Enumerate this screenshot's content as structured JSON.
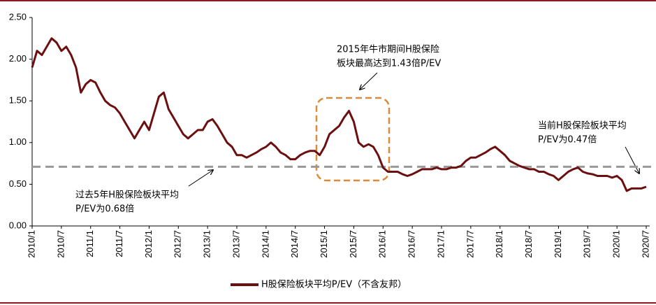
{
  "chart_data": {
    "type": "line",
    "x": [
      "2010/1",
      "2010/2",
      "2010/3",
      "2010/4",
      "2010/5",
      "2010/6",
      "2010/7",
      "2010/8",
      "2010/9",
      "2010/10",
      "2010/11",
      "2010/12",
      "2011/1",
      "2011/2",
      "2011/3",
      "2011/4",
      "2011/5",
      "2011/6",
      "2011/7",
      "2011/8",
      "2011/9",
      "2011/10",
      "2011/11",
      "2011/12",
      "2012/1",
      "2012/2",
      "2012/3",
      "2012/4",
      "2012/5",
      "2012/6",
      "2012/7",
      "2012/8",
      "2012/9",
      "2012/10",
      "2012/11",
      "2012/12",
      "2013/1",
      "2013/2",
      "2013/3",
      "2013/4",
      "2013/5",
      "2013/6",
      "2013/7",
      "2013/8",
      "2013/9",
      "2013/10",
      "2013/11",
      "2013/12",
      "2014/1",
      "2014/2",
      "2014/3",
      "2014/4",
      "2014/5",
      "2014/6",
      "2014/7",
      "2014/8",
      "2014/9",
      "2014/10",
      "2014/11",
      "2014/12",
      "2015/1",
      "2015/2",
      "2015/3",
      "2015/4",
      "2015/5",
      "2015/6",
      "2015/7",
      "2015/8",
      "2015/9",
      "2015/10",
      "2015/11",
      "2015/12",
      "2016/1",
      "2016/2",
      "2016/3",
      "2016/4",
      "2016/5",
      "2016/6",
      "2016/7",
      "2016/8",
      "2016/9",
      "2016/10",
      "2016/11",
      "2016/12",
      "2017/1",
      "2017/2",
      "2017/3",
      "2017/4",
      "2017/5",
      "2017/6",
      "2017/7",
      "2017/8",
      "2017/9",
      "2017/10",
      "2017/11",
      "2017/12",
      "2018/1",
      "2018/2",
      "2018/3",
      "2018/4",
      "2018/5",
      "2018/6",
      "2018/7",
      "2018/8",
      "2018/9",
      "2018/10",
      "2018/11",
      "2018/12",
      "2019/1",
      "2019/2",
      "2019/3",
      "2019/4",
      "2019/5",
      "2019/6",
      "2019/7",
      "2019/8",
      "2019/9",
      "2019/10",
      "2019/11",
      "2019/12",
      "2020/1",
      "2020/2",
      "2020/3",
      "2020/4",
      "2020/5",
      "2020/6",
      "2020/7"
    ],
    "series": [
      {
        "name": "H股保险板块平均P/EV（不含友邦）",
        "color": "#6b0f0f",
        "values": [
          1.9,
          2.1,
          2.05,
          2.15,
          2.25,
          2.2,
          2.1,
          2.15,
          2.05,
          1.9,
          1.6,
          1.7,
          1.75,
          1.72,
          1.6,
          1.5,
          1.45,
          1.42,
          1.35,
          1.25,
          1.15,
          1.05,
          1.15,
          1.25,
          1.15,
          1.35,
          1.55,
          1.6,
          1.4,
          1.3,
          1.2,
          1.1,
          1.05,
          1.1,
          1.15,
          1.15,
          1.25,
          1.28,
          1.2,
          1.1,
          1.0,
          0.95,
          0.85,
          0.85,
          0.82,
          0.85,
          0.88,
          0.92,
          0.95,
          1.0,
          0.95,
          0.88,
          0.85,
          0.8,
          0.8,
          0.85,
          0.88,
          0.9,
          0.9,
          0.85,
          0.95,
          1.1,
          1.15,
          1.2,
          1.3,
          1.38,
          1.25,
          1.0,
          0.95,
          0.98,
          0.95,
          0.85,
          0.7,
          0.65,
          0.65,
          0.65,
          0.62,
          0.6,
          0.62,
          0.65,
          0.68,
          0.68,
          0.68,
          0.7,
          0.68,
          0.68,
          0.7,
          0.7,
          0.72,
          0.78,
          0.82,
          0.82,
          0.85,
          0.88,
          0.92,
          0.95,
          0.9,
          0.85,
          0.78,
          0.75,
          0.72,
          0.7,
          0.68,
          0.68,
          0.65,
          0.65,
          0.62,
          0.6,
          0.55,
          0.6,
          0.65,
          0.68,
          0.7,
          0.65,
          0.63,
          0.62,
          0.6,
          0.6,
          0.6,
          0.58,
          0.6,
          0.55,
          0.42,
          0.45,
          0.45,
          0.45,
          0.47
        ]
      }
    ],
    "xticks": [
      "2010/1",
      "2010/7",
      "2011/1",
      "2011/7",
      "2012/1",
      "2012/7",
      "2013/1",
      "2013/7",
      "2014/1",
      "2014/7",
      "2015/1",
      "2015/7",
      "2016/1",
      "2016/7",
      "2017/1",
      "2017/7",
      "2018/1",
      "2018/7",
      "2019/1",
      "2019/7",
      "2020/1",
      "2020/7"
    ],
    "ylim": [
      0,
      2.5
    ],
    "yticks": [
      {
        "value": 0,
        "label": "0.00"
      },
      {
        "value": 0.5,
        "label": "0.50"
      },
      {
        "value": 1,
        "label": "1.00"
      },
      {
        "value": 1.5,
        "label": "1.50"
      },
      {
        "value": 2,
        "label": "2.00"
      },
      {
        "value": 2.5,
        "label": "2.50"
      }
    ],
    "reference_line": {
      "value": 0.71,
      "color": "#999999"
    },
    "annotations": [
      [
        "2015年牛市期间H股保险",
        "板块最高达到1.43倍P/EV"
      ],
      [
        "当前H股保险板块平均",
        "P/EV为0.47倍"
      ],
      [
        "过去5年H股保险板块平均",
        "P/EV为0.68倍"
      ]
    ]
  }
}
